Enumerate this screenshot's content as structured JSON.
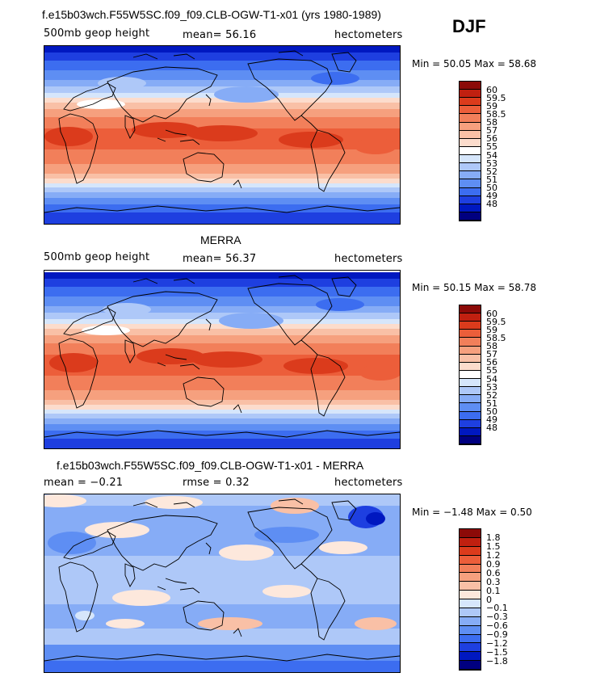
{
  "season": "DJF",
  "colors": {
    "abs": [
      "#000080",
      "#0018c0",
      "#1e3fe0",
      "#3c6df0",
      "#5e8ef3",
      "#86acf6",
      "#aec8f8",
      "#d6e6fb",
      "#ffffff",
      "#fcdccc",
      "#f9c0a6",
      "#f6a07e",
      "#f27f5a",
      "#ec5e3a",
      "#db3b1c",
      "#c02010",
      "#8c0a08"
    ],
    "diff": [
      "#000080",
      "#0018c0",
      "#1e3fe0",
      "#3c6df0",
      "#5e8ef3",
      "#86acf6",
      "#aec8f8",
      "#d6e6fb",
      "#fde8dc",
      "#f9c0a6",
      "#f6a07e",
      "#f27f5a",
      "#ec5e3a",
      "#db3b1c",
      "#c02010",
      "#8c0a08"
    ]
  },
  "chart_data": [
    {
      "type": "heatmap",
      "title": "f.e15b03wch.F55W5SC.f09_f09.CLB-OGW-T1-x01 (yrs 1980-1989)",
      "field_label": "500mb geop height",
      "mean_text": "mean=  56.16",
      "units": "hectometers",
      "min_max_text": "Min =  50.05 Max =  58.68",
      "min": 50.05,
      "max": 58.68,
      "mean": 56.16,
      "colorbar_labels": [
        "60",
        "59.5",
        "59",
        "58.5",
        "58",
        "57",
        "56",
        "55",
        "54",
        "53",
        "52",
        "51",
        "50",
        "49",
        "48"
      ]
    },
    {
      "type": "heatmap",
      "title": "MERRA",
      "field_label": "500mb geop height",
      "mean_text": "mean=  56.37",
      "units": "hectometers",
      "min_max_text": "Min =  50.15 Max =  58.78",
      "min": 50.15,
      "max": 58.78,
      "mean": 56.37,
      "colorbar_labels": [
        "60",
        "59.5",
        "59",
        "58.5",
        "58",
        "57",
        "56",
        "55",
        "54",
        "53",
        "52",
        "51",
        "50",
        "49",
        "48"
      ]
    },
    {
      "type": "heatmap",
      "title": "f.e15b03wch.F55W5SC.f09_f09.CLB-OGW-T1-x01 - MERRA",
      "mean_text": "mean =  −0.21",
      "rmse_text": "rmse =   0.32",
      "units": "hectometers",
      "min_max_text": "Min =  −1.48 Max =   0.50",
      "min": -1.48,
      "max": 0.5,
      "mean": -0.21,
      "rmse": 0.32,
      "colorbar_labels": [
        "1.8",
        "1.5",
        "1.2",
        "0.9",
        "0.6",
        "0.3",
        "0.1",
        "0",
        "−0.1",
        "−0.3",
        "−0.6",
        "−0.9",
        "−1.2",
        "−1.5",
        "−1.8"
      ]
    }
  ]
}
